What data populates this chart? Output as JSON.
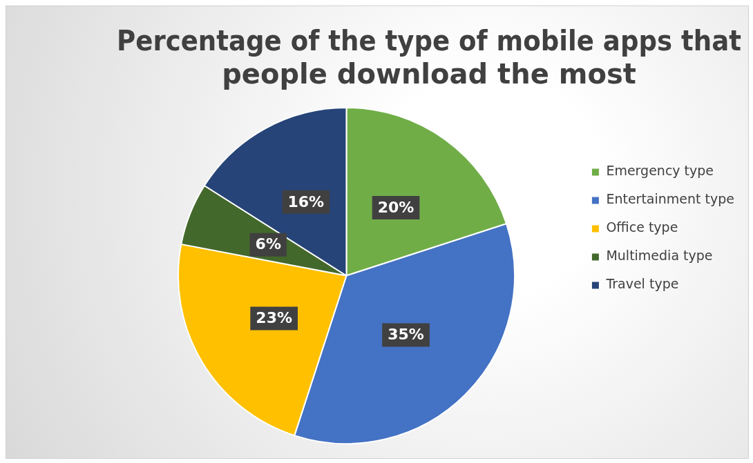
{
  "chart_data": {
    "type": "pie",
    "title": "Percentage of the type of mobile apps that people download the most",
    "categories": [
      "Emergency type",
      "Entertainment type",
      "Office type",
      "Multimedia type",
      "Travel type"
    ],
    "values": [
      20,
      35,
      23,
      6,
      16
    ],
    "colors": [
      "#70ad47",
      "#4472c4",
      "#ffc000",
      "#43682b",
      "#264478"
    ],
    "value_labels": [
      "20%",
      "35%",
      "23%",
      "6%",
      "16%"
    ],
    "legend": "right"
  }
}
